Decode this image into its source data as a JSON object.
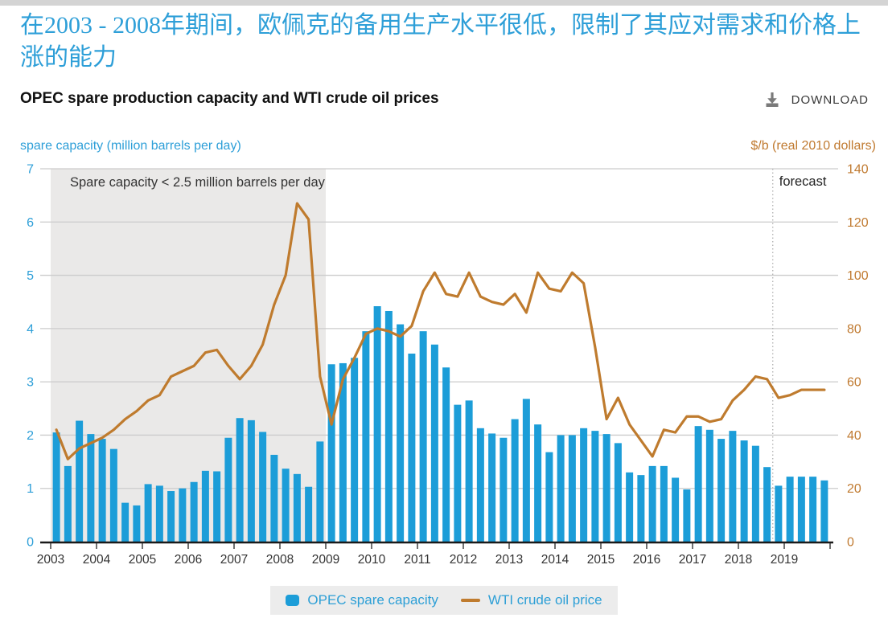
{
  "page": {
    "headline_zh": "在2003 - 2008年期间，欧佩克的备用生产水平很低，限制了其应对需求和价格上涨的能力"
  },
  "header": {
    "title": "OPEC spare production capacity and WTI crude oil prices",
    "download_label": "DOWNLOAD"
  },
  "axes": {
    "left_title": "spare capacity (million barrels per day)",
    "right_title": "$/b (real 2010 dollars)",
    "left_ticks": [
      7,
      6,
      5,
      4,
      3,
      2,
      1,
      0
    ],
    "right_ticks": [
      140,
      120,
      100,
      80,
      60,
      40,
      20,
      0
    ]
  },
  "annotations": {
    "shade_label": "Spare capacity < 2.5 million barrels per day",
    "forecast_label": "forecast"
  },
  "legend": {
    "items": [
      {
        "label": "OPEC spare capacity",
        "marker": "bar-swatch"
      },
      {
        "label": "WTI crude oil price",
        "marker": "line-swatch"
      }
    ]
  },
  "colors": {
    "blue": "#1c9dd8",
    "blue_text": "#2e9fd8",
    "orange": "#bf7b2e",
    "orange_text": "#c07a30",
    "shade": "#eae9e8",
    "grid": "#cccccc",
    "axis": "#1a1a1a",
    "tick": "#333333",
    "x_label": "#333333",
    "annotation": "#333333",
    "forecast_divider": "#aaaaaa",
    "legend_bg": "#ececec",
    "top_strip": "#d4d4d4",
    "download_icon": "#7a7a7a"
  },
  "chart_data": {
    "type": [
      "bar",
      "line"
    ],
    "title": "OPEC spare production capacity and WTI crude oil prices",
    "frequency": "quarterly",
    "years": [
      2003,
      2004,
      2005,
      2006,
      2007,
      2008,
      2009,
      2010,
      2011,
      2012,
      2013,
      2014,
      2015,
      2016,
      2017,
      2018,
      2019
    ],
    "start_quarter": "2003Q1",
    "end_quarter": "2019Q4",
    "left_ylabel": "spare capacity (million barrels per day)",
    "right_ylabel": "$/b (real 2010 dollars)",
    "left_ylim": [
      0,
      7
    ],
    "right_ylim": [
      0,
      140
    ],
    "grid": true,
    "legend_position": "bottom-center",
    "shade_region": {
      "from": "2003Q1",
      "to": "2008Q4",
      "label": "Spare capacity < 2.5 million barrels per day"
    },
    "forecast_from": "2018Q4",
    "forecast_divider_index": 63,
    "series": [
      {
        "name": "OPEC spare capacity",
        "type": "bar",
        "axis": "left",
        "values": [
          2.05,
          1.42,
          2.27,
          2.02,
          1.93,
          1.74,
          0.73,
          0.68,
          1.08,
          1.05,
          0.95,
          1.0,
          1.12,
          1.33,
          1.32,
          1.95,
          2.32,
          2.28,
          2.06,
          1.63,
          1.37,
          1.27,
          1.03,
          1.88,
          3.33,
          3.35,
          3.45,
          3.95,
          4.42,
          4.33,
          4.08,
          3.53,
          3.95,
          3.7,
          3.27,
          2.57,
          2.65,
          2.13,
          2.03,
          1.95,
          2.3,
          2.68,
          2.2,
          1.68,
          2.0,
          2.0,
          2.13,
          2.08,
          2.02,
          1.85,
          1.3,
          1.25,
          1.42,
          1.42,
          1.2,
          0.98,
          2.17,
          2.1,
          1.93,
          2.08,
          1.9,
          1.8,
          1.4,
          1.05,
          1.22,
          1.22,
          1.22,
          1.15
        ]
      },
      {
        "name": "WTI crude oil price",
        "type": "line",
        "axis": "right",
        "values": [
          42,
          31,
          35,
          37,
          39,
          42,
          46,
          49,
          53,
          55,
          62,
          64,
          66,
          71,
          72,
          66,
          61,
          66,
          74,
          89,
          100,
          127,
          121,
          62,
          44,
          61,
          69,
          78,
          80,
          79,
          77,
          81,
          94,
          101,
          93,
          92,
          101,
          92,
          90,
          89,
          93,
          86,
          101,
          95,
          94,
          101,
          97,
          73,
          46,
          54,
          44,
          38,
          32,
          42,
          41,
          47,
          47,
          45,
          46,
          53,
          57,
          62,
          61,
          54,
          55,
          57,
          57,
          57
        ]
      }
    ]
  }
}
